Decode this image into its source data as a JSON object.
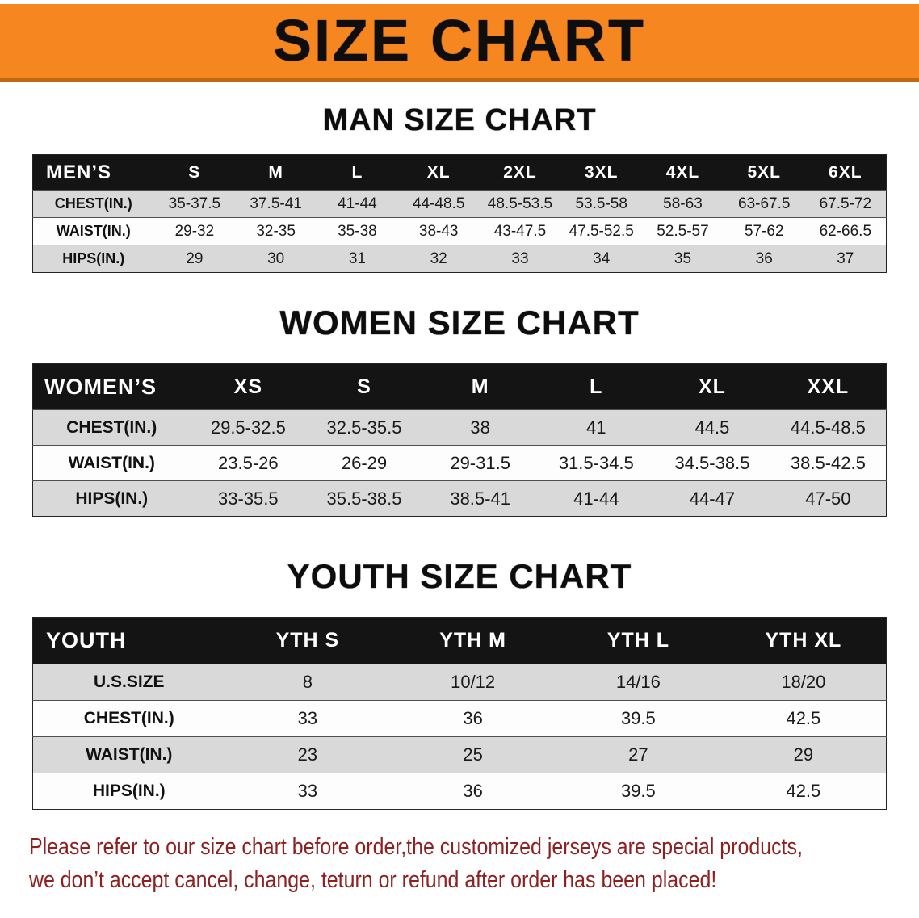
{
  "banner": {
    "title": "SIZE CHART"
  },
  "chart_data": [
    {
      "type": "table",
      "title": "MAN SIZE CHART",
      "header": [
        "MEN’S",
        "S",
        "M",
        "L",
        "XL",
        "2XL",
        "3XL",
        "4XL",
        "5XL",
        "6XL"
      ],
      "rows": [
        {
          "label": "CHEST(IN.)",
          "values": [
            "35-37.5",
            "37.5-41",
            "41-44",
            "44-48.5",
            "48.5-53.5",
            "53.5-58",
            "58-63",
            "63-67.5",
            "67.5-72"
          ]
        },
        {
          "label": "WAIST(IN.)",
          "values": [
            "29-32",
            "32-35",
            "35-38",
            "38-43",
            "43-47.5",
            "47.5-52.5",
            "52.5-57",
            "57-62",
            "62-66.5"
          ]
        },
        {
          "label": "HIPS(IN.)",
          "values": [
            "29",
            "30",
            "31",
            "32",
            "33",
            "34",
            "35",
            "36",
            "37"
          ]
        }
      ]
    },
    {
      "type": "table",
      "title": "WOMEN SIZE CHART",
      "header": [
        "WOMEN’S",
        "XS",
        "S",
        "M",
        "L",
        "XL",
        "XXL"
      ],
      "rows": [
        {
          "label": "CHEST(IN.)",
          "values": [
            "29.5-32.5",
            "32.5-35.5",
            "38",
            "41",
            "44.5",
            "44.5-48.5"
          ]
        },
        {
          "label": "WAIST(IN.)",
          "values": [
            "23.5-26",
            "26-29",
            "29-31.5",
            "31.5-34.5",
            "34.5-38.5",
            "38.5-42.5"
          ]
        },
        {
          "label": "HIPS(IN.)",
          "values": [
            "33-35.5",
            "35.5-38.5",
            "38.5-41",
            "41-44",
            "44-47",
            "47-50"
          ]
        }
      ]
    },
    {
      "type": "table",
      "title": "YOUTH SIZE CHART",
      "header": [
        "YOUTH",
        "YTH S",
        "YTH M",
        "YTH L",
        "YTH XL"
      ],
      "rows": [
        {
          "label": "U.S.SIZE",
          "values": [
            "8",
            "10/12",
            "14/16",
            "18/20"
          ]
        },
        {
          "label": "CHEST(IN.)",
          "values": [
            "33",
            "36",
            "39.5",
            "42.5"
          ]
        },
        {
          "label": "WAIST(IN.)",
          "values": [
            "23",
            "25",
            "27",
            "29"
          ]
        },
        {
          "label": "HIPS(IN.)",
          "values": [
            "33",
            "36",
            "39.5",
            "42.5"
          ]
        }
      ]
    }
  ],
  "disclaimer": {
    "line1": "Please refer to our size chart before order,the customized jerseys are special products,",
    "line2": "we don’t accept cancel, change, teturn or refund after order has been placed!"
  },
  "colors": {
    "banner_orange": "#f6861f",
    "banner_edge": "#bf6a10",
    "table_header_black": "#141414",
    "row_gray": "#d9d9d9",
    "row_white": "#fdfdfd",
    "disclaimer_red": "#8e2020"
  }
}
